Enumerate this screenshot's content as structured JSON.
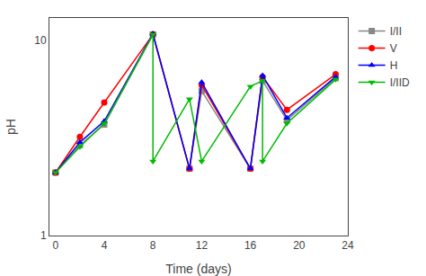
{
  "chart_data": {
    "type": "line",
    "xlabel": "Time (days)",
    "ylabel": "pH",
    "log": "y",
    "xlim": [
      -0.5,
      24
    ],
    "ylim": [
      1.0,
      13
    ],
    "xticks": [
      0,
      4,
      8,
      12,
      16,
      20,
      24
    ],
    "yticks": [
      1,
      10
    ],
    "grid": false,
    "legend": "upper right",
    "series": [
      {
        "name": "I/II",
        "color": "#888888",
        "marker": "square",
        "x": [
          0,
          2,
          4,
          8,
          11,
          12,
          16,
          17,
          19,
          23
        ],
        "values": [
          2.1,
          2.9,
          3.7,
          10.7,
          2.2,
          5.5,
          2.2,
          6.2,
          3.9,
          6.4
        ]
      },
      {
        "name": "V",
        "color": "#ff0000",
        "marker": "circle",
        "x": [
          0,
          2,
          4,
          8,
          11,
          12,
          16,
          17,
          19,
          23
        ],
        "values": [
          2.1,
          3.2,
          4.8,
          10.7,
          2.2,
          5.9,
          2.2,
          6.5,
          4.4,
          6.7
        ]
      },
      {
        "name": "H",
        "color": "#0000ff",
        "marker": "triangle-up",
        "x": [
          0,
          2,
          4,
          8,
          11,
          12,
          16,
          17,
          19,
          23
        ],
        "values": [
          2.1,
          3.0,
          3.85,
          10.8,
          2.2,
          6.1,
          2.2,
          6.6,
          4.0,
          6.5
        ]
      },
      {
        "name": "I/IID",
        "color": "#00bb00",
        "marker": "triangle-down",
        "x": [
          0,
          2,
          4,
          8,
          8,
          11,
          12,
          16,
          17,
          17,
          19,
          23
        ],
        "values": [
          2.1,
          2.85,
          3.75,
          10.7,
          2.4,
          5.0,
          2.4,
          5.8,
          6.2,
          2.4,
          3.75,
          6.3
        ]
      }
    ]
  }
}
